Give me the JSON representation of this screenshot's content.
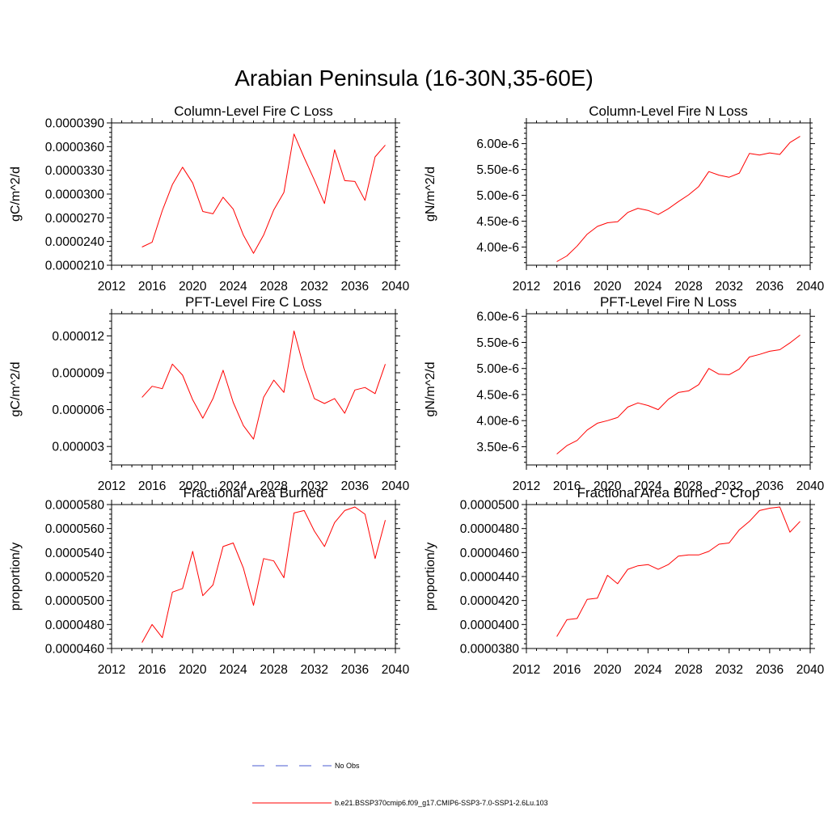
{
  "figure": {
    "title": "Arabian Peninsula (16-30N,35-60E)"
  },
  "colors": {
    "series": "#ff0000",
    "noobs": "#4a5bd0",
    "axis": "#000000"
  },
  "legend": {
    "items": [
      {
        "label": "No Obs",
        "style": "dashed",
        "color": "#4a5bd0"
      },
      {
        "label": "b.e21.BSSP370cmip6.f09_g17.CMIP6-SSP3-7.0-SSP1-2.6Lu.103",
        "style": "solid",
        "color": "#ff0000"
      }
    ]
  },
  "chart_data": [
    {
      "type": "line",
      "title": "Column-Level Fire C Loss",
      "ylabel": "gC/m^2/d",
      "xlim": [
        2012,
        2040
      ],
      "ylim": [
        2.1e-05,
        3.9e-05
      ],
      "xticks": [
        "2012",
        "2016",
        "2020",
        "2024",
        "2028",
        "2032",
        "2036",
        "2040"
      ],
      "yticks": [
        "0.0000210",
        "0.0000240",
        "0.0000270",
        "0.0000300",
        "0.0000330",
        "0.0000360",
        "0.0000390"
      ],
      "ytick_values": [
        2.1e-05,
        2.4e-05,
        2.7e-05,
        3e-05,
        3.3e-05,
        3.6e-05,
        3.9e-05
      ],
      "x": [
        2015,
        2016,
        2017,
        2018,
        2019,
        2020,
        2021,
        2022,
        2023,
        2024,
        2025,
        2026,
        2027,
        2028,
        2029,
        2030,
        2031,
        2032,
        2033,
        2034,
        2035,
        2036,
        2037,
        2038,
        2039
      ],
      "series": [
        {
          "values": [
            2.33e-05,
            2.39e-05,
            2.79e-05,
            3.12e-05,
            3.34e-05,
            3.14e-05,
            2.78e-05,
            2.75e-05,
            2.96e-05,
            2.81e-05,
            2.48e-05,
            2.25e-05,
            2.48e-05,
            2.8e-05,
            3.02e-05,
            3.76e-05,
            3.46e-05,
            3.18e-05,
            2.88e-05,
            3.56e-05,
            3.17e-05,
            3.16e-05,
            2.92e-05,
            3.47e-05,
            3.62e-05
          ]
        }
      ]
    },
    {
      "type": "line",
      "title": "Column-Level Fire N Loss",
      "ylabel": "gN/m^2/d",
      "xlim": [
        2012,
        2040
      ],
      "ylim": [
        3.65e-06,
        6.4e-06
      ],
      "xticks": [
        "2012",
        "2016",
        "2020",
        "2024",
        "2028",
        "2032",
        "2036",
        "2040"
      ],
      "yticks": [
        "4.00e-6",
        "4.50e-6",
        "5.00e-6",
        "5.50e-6",
        "6.00e-6"
      ],
      "ytick_values": [
        4e-06,
        4.5e-06,
        5e-06,
        5.5e-06,
        6e-06
      ],
      "x": [
        2015,
        2016,
        2017,
        2018,
        2019,
        2020,
        2021,
        2022,
        2023,
        2024,
        2025,
        2026,
        2027,
        2028,
        2029,
        2030,
        2031,
        2032,
        2033,
        2034,
        2035,
        2036,
        2037,
        2038,
        2039
      ],
      "series": [
        {
          "values": [
            3.72e-06,
            3.83e-06,
            4.02e-06,
            4.25e-06,
            4.4e-06,
            4.47e-06,
            4.49e-06,
            4.67e-06,
            4.75e-06,
            4.71e-06,
            4.63e-06,
            4.74e-06,
            4.88e-06,
            5.01e-06,
            5.17e-06,
            5.46e-06,
            5.39e-06,
            5.35e-06,
            5.43e-06,
            5.81e-06,
            5.78e-06,
            5.82e-06,
            5.79e-06,
            6.02e-06,
            6.14e-06
          ]
        }
      ]
    },
    {
      "type": "line",
      "title": "PFT-Level Fire C Loss",
      "ylabel": "gC/m^2/d",
      "xlim": [
        2012,
        2040
      ],
      "ylim": [
        1.5e-06,
        1.38e-05
      ],
      "xticks": [
        "2012",
        "2016",
        "2020",
        "2024",
        "2028",
        "2032",
        "2036",
        "2040"
      ],
      "yticks": [
        "0.000003",
        "0.000006",
        "0.000009",
        "0.000012"
      ],
      "ytick_values": [
        3e-06,
        6e-06,
        9e-06,
        1.2e-05
      ],
      "x": [
        2015,
        2016,
        2017,
        2018,
        2019,
        2020,
        2021,
        2022,
        2023,
        2024,
        2025,
        2026,
        2027,
        2028,
        2029,
        2030,
        2031,
        2032,
        2033,
        2034,
        2035,
        2036,
        2037,
        2038,
        2039
      ],
      "series": [
        {
          "values": [
            7e-06,
            7.9e-06,
            7.7e-06,
            9.7e-06,
            8.8e-06,
            6.8e-06,
            5.3e-06,
            6.9e-06,
            9.2e-06,
            6.6e-06,
            4.7e-06,
            3.6e-06,
            7e-06,
            8.4e-06,
            7.4e-06,
            1.24e-05,
            9.3e-06,
            6.9e-06,
            6.5e-06,
            6.9e-06,
            5.7e-06,
            7.6e-06,
            7.8e-06,
            7.3e-06,
            9.7e-06
          ]
        }
      ]
    },
    {
      "type": "line",
      "title": "PFT-Level Fire N Loss",
      "ylabel": "gN/m^2/d",
      "xlim": [
        2012,
        2040
      ],
      "ylim": [
        3.15e-06,
        6.05e-06
      ],
      "xticks": [
        "2012",
        "2016",
        "2020",
        "2024",
        "2028",
        "2032",
        "2036",
        "2040"
      ],
      "yticks": [
        "3.50e-6",
        "4.00e-6",
        "4.50e-6",
        "5.00e-6",
        "5.50e-6",
        "6.00e-6"
      ],
      "ytick_values": [
        3.5e-06,
        4e-06,
        4.5e-06,
        5e-06,
        5.5e-06,
        6e-06
      ],
      "x": [
        2015,
        2016,
        2017,
        2018,
        2019,
        2020,
        2021,
        2022,
        2023,
        2024,
        2025,
        2026,
        2027,
        2028,
        2029,
        2030,
        2031,
        2032,
        2033,
        2034,
        2035,
        2036,
        2037,
        2038,
        2039
      ],
      "series": [
        {
          "values": [
            3.36e-06,
            3.52e-06,
            3.62e-06,
            3.82e-06,
            3.95e-06,
            4e-06,
            4.06e-06,
            4.26e-06,
            4.34e-06,
            4.29e-06,
            4.21e-06,
            4.41e-06,
            4.54e-06,
            4.57e-06,
            4.69e-06,
            5e-06,
            4.89e-06,
            4.88e-06,
            4.99e-06,
            5.22e-06,
            5.27e-06,
            5.33e-06,
            5.36e-06,
            5.49e-06,
            5.64e-06
          ]
        }
      ]
    },
    {
      "type": "line",
      "title": "Fractional Area Burned",
      "ylabel": "proportion/y",
      "xlim": [
        2012,
        2040
      ],
      "ylim": [
        4.6e-05,
        5.8e-05
      ],
      "xticks": [
        "2012",
        "2016",
        "2020",
        "2024",
        "2028",
        "2032",
        "2036",
        "2040"
      ],
      "yticks": [
        "0.0000460",
        "0.0000480",
        "0.0000500",
        "0.0000520",
        "0.0000540",
        "0.0000560",
        "0.0000580"
      ],
      "ytick_values": [
        4.6e-05,
        4.8e-05,
        5e-05,
        5.2e-05,
        5.4e-05,
        5.6e-05,
        5.8e-05
      ],
      "x": [
        2015,
        2016,
        2017,
        2018,
        2019,
        2020,
        2021,
        2022,
        2023,
        2024,
        2025,
        2026,
        2027,
        2028,
        2029,
        2030,
        2031,
        2032,
        2033,
        2034,
        2035,
        2036,
        2037,
        2038,
        2039
      ],
      "series": [
        {
          "values": [
            4.65e-05,
            4.8e-05,
            4.69e-05,
            5.07e-05,
            5.1e-05,
            5.41e-05,
            5.04e-05,
            5.13e-05,
            5.45e-05,
            5.48e-05,
            5.27e-05,
            4.96e-05,
            5.35e-05,
            5.33e-05,
            5.19e-05,
            5.73e-05,
            5.75e-05,
            5.58e-05,
            5.45e-05,
            5.65e-05,
            5.75e-05,
            5.78e-05,
            5.72e-05,
            5.35e-05,
            5.67e-05
          ]
        }
      ]
    },
    {
      "type": "line",
      "title": "Fractional Area Burned - Crop",
      "ylabel": "proportion/y",
      "xlim": [
        2012,
        2040
      ],
      "ylim": [
        3.8e-05,
        5e-05
      ],
      "xticks": [
        "2012",
        "2016",
        "2020",
        "2024",
        "2028",
        "2032",
        "2036",
        "2040"
      ],
      "yticks": [
        "0.0000380",
        "0.0000400",
        "0.0000420",
        "0.0000440",
        "0.0000460",
        "0.0000480",
        "0.0000500"
      ],
      "ytick_values": [
        3.8e-05,
        4e-05,
        4.2e-05,
        4.4e-05,
        4.6e-05,
        4.8e-05,
        5e-05
      ],
      "x": [
        2015,
        2016,
        2017,
        2018,
        2019,
        2020,
        2021,
        2022,
        2023,
        2024,
        2025,
        2026,
        2027,
        2028,
        2029,
        2030,
        2031,
        2032,
        2033,
        2034,
        2035,
        2036,
        2037,
        2038,
        2039
      ],
      "series": [
        {
          "values": [
            3.9e-05,
            4.04e-05,
            4.05e-05,
            4.21e-05,
            4.22e-05,
            4.41e-05,
            4.34e-05,
            4.46e-05,
            4.49e-05,
            4.5e-05,
            4.46e-05,
            4.5e-05,
            4.57e-05,
            4.58e-05,
            4.58e-05,
            4.61e-05,
            4.67e-05,
            4.68e-05,
            4.79e-05,
            4.86e-05,
            4.95e-05,
            4.97e-05,
            4.98e-05,
            4.77e-05,
            4.86e-05
          ]
        }
      ]
    }
  ]
}
